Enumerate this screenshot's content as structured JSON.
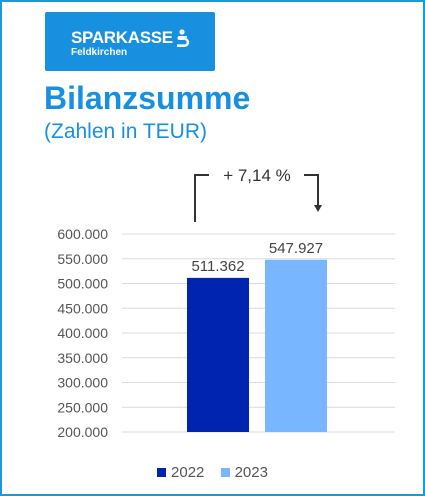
{
  "logo": {
    "brand": "SPARKASSE",
    "location": "Feldkirchen",
    "icon": "sparkasse-s-icon",
    "background": "#1890e0"
  },
  "header": {
    "title": "Bilanzsumme",
    "subtitle": "(Zahlen in TEUR)"
  },
  "chart_data": {
    "type": "bar",
    "categories": [
      "2022",
      "2023"
    ],
    "values": [
      511362,
      547927
    ],
    "value_labels": [
      "511.362",
      "547.927"
    ],
    "colors": [
      "#0024b0",
      "#78b6ff"
    ],
    "ylim": [
      200000,
      600000
    ],
    "yticks": [
      200000,
      250000,
      300000,
      350000,
      400000,
      450000,
      500000,
      550000,
      600000
    ],
    "ytick_labels": [
      "200.000",
      "250.000",
      "300.000",
      "350.000",
      "400.000",
      "450.000",
      "500.000",
      "550.000",
      "600.000"
    ],
    "grid": true,
    "legend_position": "bottom",
    "annotation": "+ 7,14 %",
    "title": "",
    "xlabel": "",
    "ylabel": ""
  },
  "legend": {
    "items": [
      {
        "label": "2022",
        "color": "#0024b0"
      },
      {
        "label": "2023",
        "color": "#78b6ff"
      }
    ]
  }
}
